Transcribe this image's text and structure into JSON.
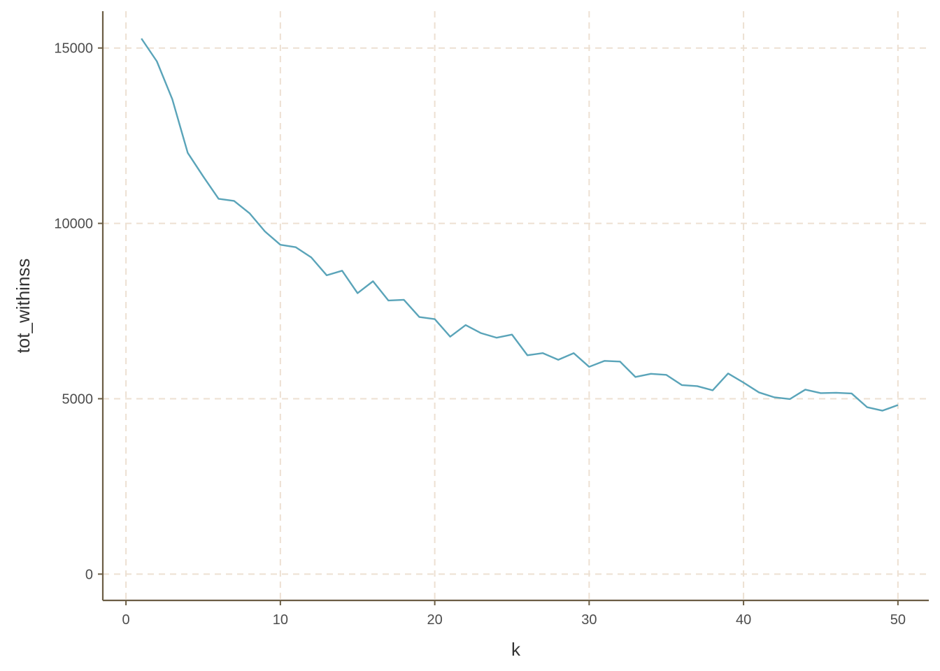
{
  "chart_data": {
    "type": "line",
    "xlabel": "k",
    "ylabel": "tot_withinss",
    "xlim": [
      -1.5,
      52
    ],
    "ylim": [
      -750,
      16050
    ],
    "x_ticks": [
      0,
      10,
      20,
      30,
      40,
      50
    ],
    "y_ticks": [
      0,
      5000,
      10000,
      15000
    ],
    "x_tick_labels": [
      "0",
      "10",
      "20",
      "30",
      "40",
      "50"
    ],
    "y_tick_labels": [
      "0",
      "5000",
      "10000",
      "15000"
    ],
    "grid": true,
    "grid_style": "dashed",
    "legend": "none",
    "colors": {
      "line": "#5aa4b9",
      "grid": "#ede0d2",
      "axis": "#6b5d44"
    },
    "series": [
      {
        "x": [
          1,
          2,
          3,
          4,
          5,
          6,
          7,
          8,
          9,
          10,
          11,
          12,
          13,
          14,
          15,
          16,
          17,
          18,
          19,
          20,
          21,
          22,
          23,
          24,
          25,
          26,
          27,
          28,
          29,
          30,
          31,
          32,
          33,
          34,
          35,
          36,
          37,
          38,
          39,
          40,
          41,
          42,
          43,
          44,
          45,
          46,
          47,
          48,
          49,
          50
        ],
        "values": [
          15270,
          14620,
          13540,
          12010,
          11340,
          10700,
          10640,
          10290,
          9770,
          9390,
          9320,
          9030,
          8520,
          8650,
          8010,
          8350,
          7800,
          7820,
          7330,
          7270,
          6770,
          7100,
          6870,
          6740,
          6830,
          6240,
          6300,
          6110,
          6300,
          5910,
          6080,
          6060,
          5620,
          5710,
          5680,
          5390,
          5360,
          5240,
          5720,
          5460,
          5180,
          5040,
          4990,
          5260,
          5160,
          5170,
          5150,
          4760,
          4660,
          4820
        ]
      }
    ]
  }
}
